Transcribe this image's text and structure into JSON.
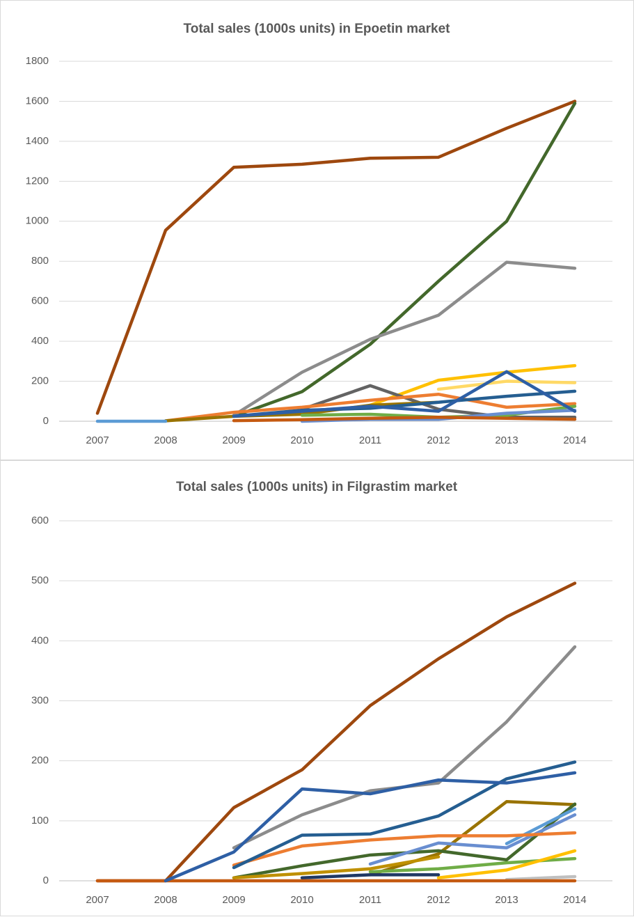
{
  "chart_data": [
    {
      "type": "line",
      "title": "Total sales (1000s units) in Epoetin market",
      "categories": [
        "2007",
        "2008",
        "2009",
        "2010",
        "2011",
        "2012",
        "2013",
        "2014"
      ],
      "ylim": [
        0,
        1800
      ],
      "yticks": [
        0,
        200,
        400,
        600,
        800,
        1000,
        1200,
        1400,
        1600,
        1800
      ],
      "grid": true,
      "series": [
        {
          "color": "#9e480e",
          "values": [
            40,
            955,
            1270,
            1285,
            1315,
            1320,
            1465,
            1600
          ]
        },
        {
          "color": "#43682b",
          "values": [
            null,
            null,
            25,
            148,
            385,
            700,
            1000,
            1590
          ]
        },
        {
          "color": "#8c8c8c",
          "values": [
            null,
            null,
            30,
            245,
            410,
            530,
            795,
            765
          ]
        },
        {
          "color": "#ffc000",
          "values": [
            null,
            null,
            null,
            null,
            80,
            205,
            245,
            278
          ]
        },
        {
          "color": "#ffd966",
          "values": [
            null,
            null,
            null,
            null,
            null,
            160,
            200,
            193
          ]
        },
        {
          "color": "#636363",
          "values": [
            null,
            null,
            null,
            60,
            178,
            60,
            20,
            20
          ]
        },
        {
          "color": "#ed7d31",
          "values": [
            null,
            2,
            45,
            70,
            105,
            135,
            70,
            88
          ]
        },
        {
          "color": "#997300",
          "values": [
            null,
            2,
            25,
            35,
            80,
            95,
            null,
            null
          ]
        },
        {
          "color": "#70ad47",
          "values": [
            null,
            null,
            null,
            30,
            35,
            20,
            30,
            75
          ]
        },
        {
          "color": "#698ed0",
          "values": [
            null,
            null,
            null,
            0,
            10,
            10,
            40,
            55
          ]
        },
        {
          "color": "#c55a11",
          "values": [
            null,
            null,
            3,
            8,
            15,
            20,
            15,
            10
          ]
        },
        {
          "color": "#255e91",
          "values": [
            null,
            null,
            25,
            55,
            65,
            95,
            125,
            150
          ]
        },
        {
          "color": "#2e5fa5",
          "values": [
            null,
            null,
            25,
            50,
            75,
            50,
            248,
            50
          ]
        },
        {
          "color": "#5b9bd5",
          "values": [
            0,
            0,
            null,
            null,
            null,
            null,
            null,
            null
          ]
        }
      ]
    },
    {
      "type": "line",
      "title": "Total sales (1000s units) in Filgrastim market",
      "categories": [
        "2007",
        "2008",
        "2009",
        "2010",
        "2011",
        "2012",
        "2013",
        "2014"
      ],
      "ylim": [
        0,
        600
      ],
      "yticks": [
        0,
        100,
        200,
        300,
        400,
        500,
        600
      ],
      "grid": true,
      "series": [
        {
          "color": "#9e480e",
          "values": [
            0,
            0,
            122,
            185,
            292,
            370,
            440,
            496
          ]
        },
        {
          "color": "#8c8c8c",
          "values": [
            null,
            null,
            55,
            110,
            150,
            163,
            265,
            390
          ]
        },
        {
          "color": "#997300",
          "values": [
            null,
            null,
            null,
            null,
            10,
            45,
            132,
            127
          ]
        },
        {
          "color": "#43682b",
          "values": [
            null,
            null,
            5,
            25,
            43,
            50,
            35,
            128
          ]
        },
        {
          "color": "#698ed0",
          "values": [
            null,
            null,
            null,
            null,
            28,
            63,
            55,
            110
          ]
        },
        {
          "color": "#5b9bd5",
          "values": [
            null,
            null,
            null,
            null,
            null,
            null,
            62,
            120
          ]
        },
        {
          "color": "#ed7d31",
          "values": [
            null,
            null,
            26,
            58,
            68,
            75,
            75,
            80
          ]
        },
        {
          "color": "#70ad47",
          "values": [
            null,
            null,
            null,
            null,
            15,
            20,
            30,
            37
          ]
        },
        {
          "color": "#bf9000",
          "values": [
            null,
            null,
            5,
            12,
            20,
            40,
            null,
            null
          ]
        },
        {
          "color": "#ffc000",
          "values": [
            null,
            null,
            null,
            null,
            null,
            5,
            18,
            50
          ]
        },
        {
          "color": "#bfbfbf",
          "values": [
            null,
            null,
            null,
            null,
            null,
            null,
            2,
            7
          ]
        },
        {
          "color": "#1f3864",
          "values": [
            null,
            null,
            null,
            5,
            10,
            10,
            null,
            null
          ]
        },
        {
          "color": "#c55a11",
          "values": [
            0,
            0,
            0,
            0,
            0,
            0,
            0,
            0
          ]
        },
        {
          "color": "#255e91",
          "values": [
            null,
            null,
            22,
            76,
            78,
            108,
            170,
            198
          ]
        },
        {
          "color": "#2e5fa5",
          "values": [
            null,
            0,
            48,
            153,
            145,
            168,
            163,
            180
          ]
        }
      ]
    }
  ]
}
